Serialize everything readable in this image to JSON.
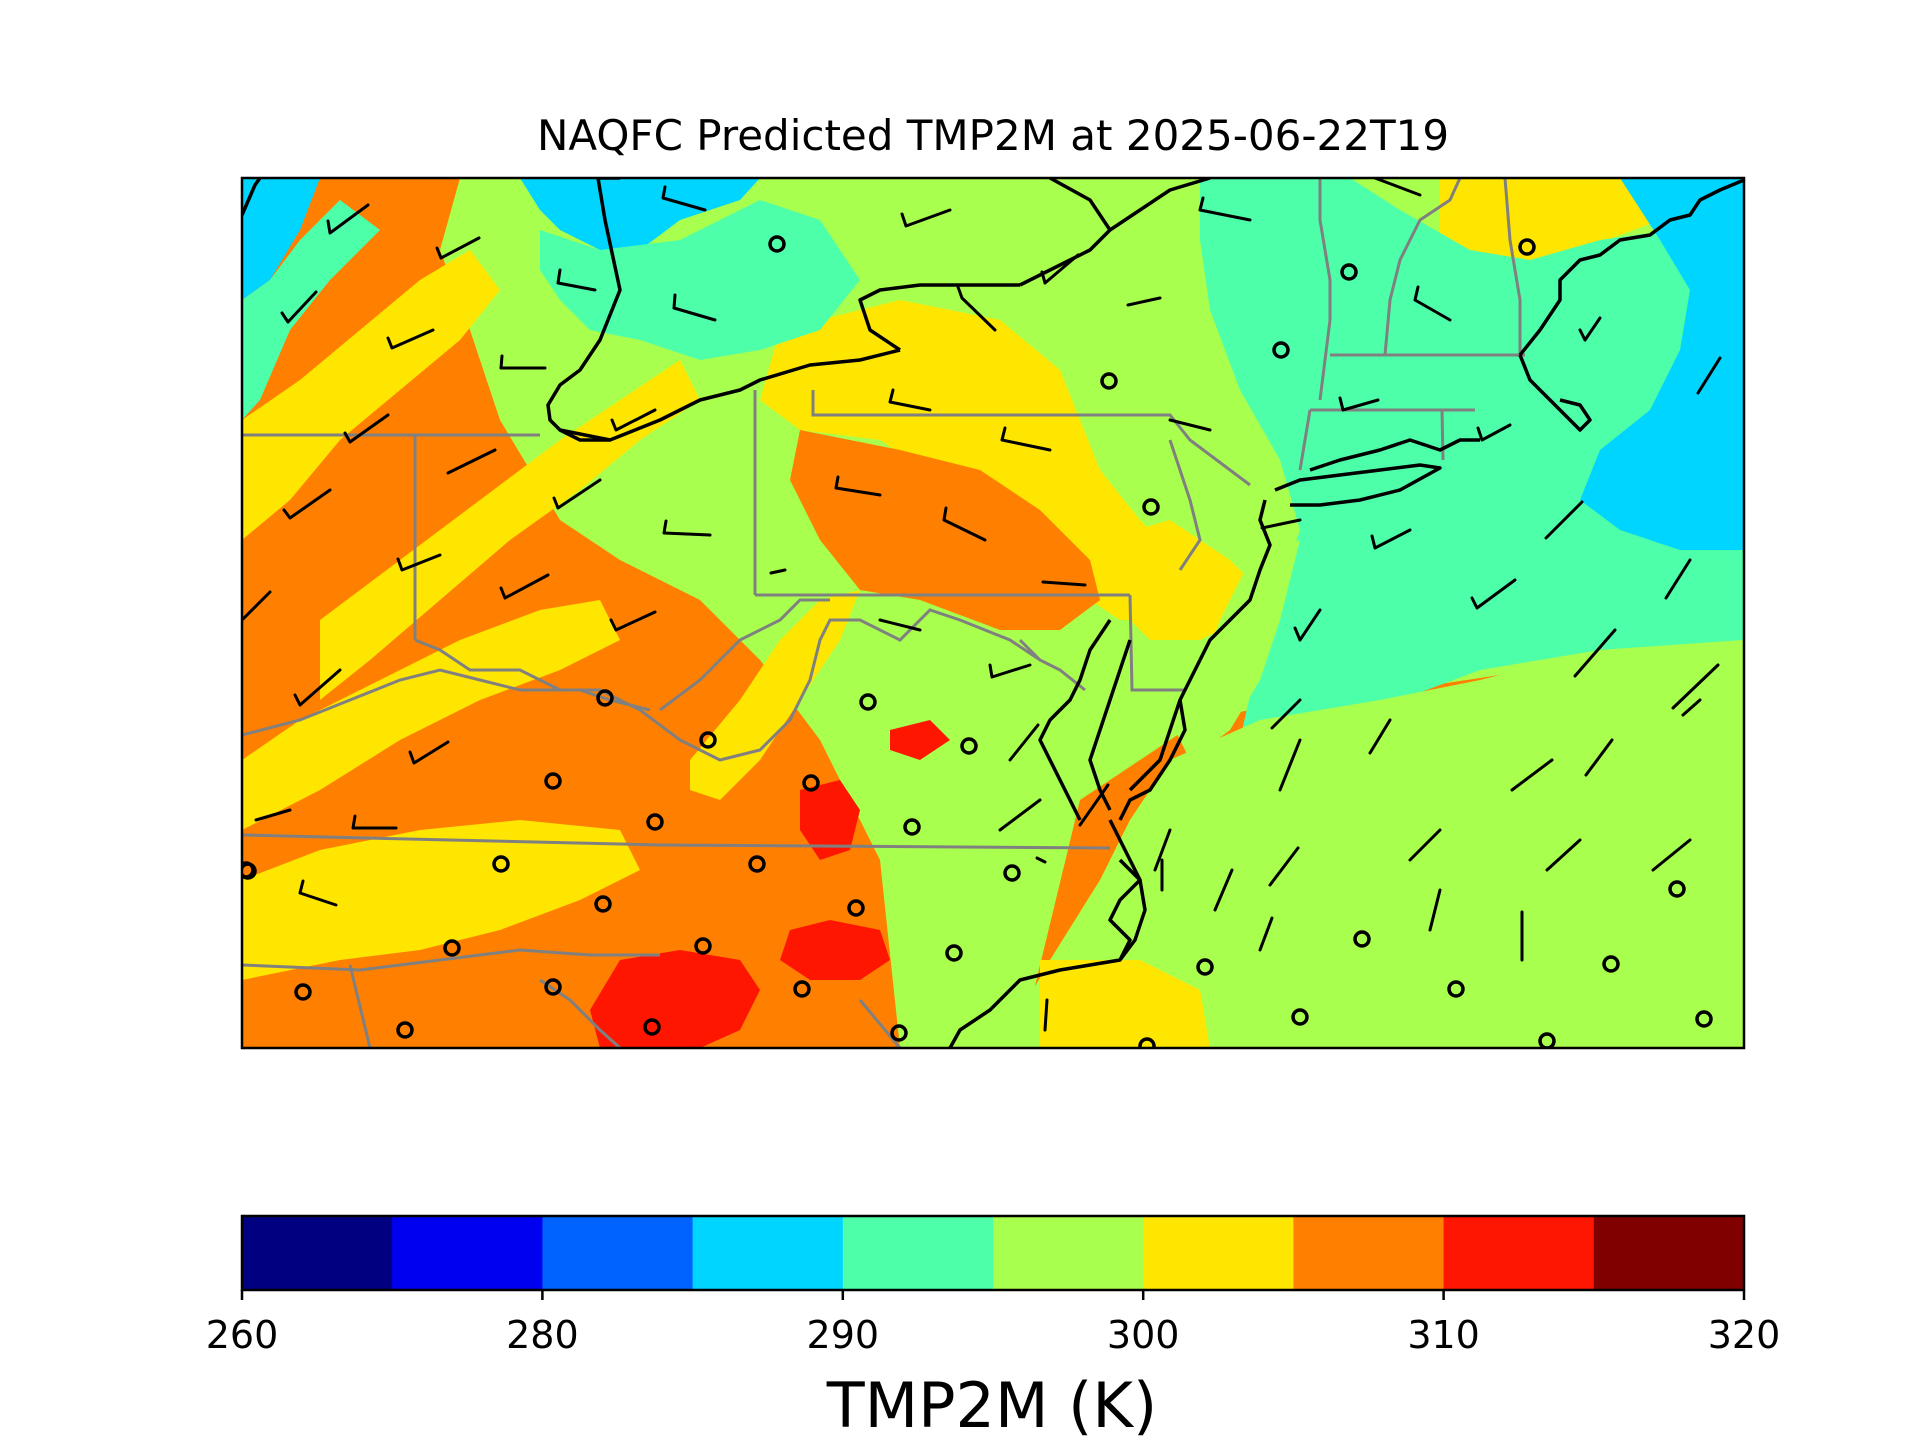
{
  "title": "NAQFC Predicted TMP2M at 2025-06-22T19",
  "colorbar": {
    "label": "TMP2M (K)",
    "ticks": [
      "260",
      "280",
      "290",
      "300",
      "310",
      "320"
    ],
    "bins": [
      {
        "range": "260-265",
        "color": "#000080"
      },
      {
        "range": "265-280",
        "color": "#0000f1"
      },
      {
        "range": "280-285",
        "color": "#0062ff"
      },
      {
        "range": "285-290",
        "color": "#00d5ff"
      },
      {
        "range": "290-295",
        "color": "#4effa9"
      },
      {
        "range": "295-300",
        "color": "#a9ff4e"
      },
      {
        "range": "300-305",
        "color": "#ffe600"
      },
      {
        "range": "305-310",
        "color": "#ff7f00"
      },
      {
        "range": "310-315",
        "color": "#ff1600"
      },
      {
        "range": "315-320",
        "color": "#800000"
      }
    ]
  },
  "map": {
    "region": "Mid-Atlantic and Northeast United States",
    "overlays": [
      "temperature-field",
      "state-borders",
      "coastlines",
      "wind-barbs",
      "calm-wind-circles"
    ]
  }
}
